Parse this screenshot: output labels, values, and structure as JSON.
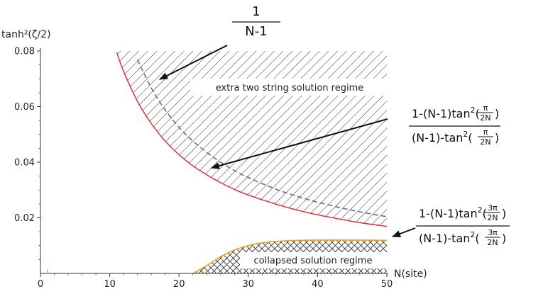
{
  "chart_data": {
    "type": "line",
    "title": "",
    "xlabel": "N(site)",
    "ylabel": "tanh²(ζ/2)",
    "xlim": [
      0,
      50
    ],
    "ylim": [
      0,
      0.08
    ],
    "x_ticks": [
      "0",
      "10",
      "20",
      "30",
      "40",
      "50"
    ],
    "y_ticks": [
      "0.02",
      "0.04",
      "0.06",
      "0.08"
    ],
    "grid": false,
    "series": [
      {
        "color": "#e0242b",
        "style": "solid",
        "formula": "(1-(N-1)·tan²(π/2N))/((N-1)-tan²(π/2N))",
        "x": [
          11,
          12,
          14,
          16,
          18,
          20,
          22,
          25,
          28,
          30,
          34,
          38,
          42,
          46,
          50
        ],
        "y": [
          0.0795,
          0.0727,
          0.0619,
          0.0539,
          0.0476,
          0.0427,
          0.0387,
          0.034,
          0.0302,
          0.0282,
          0.0249,
          0.0222,
          0.0201,
          0.0183,
          0.0169
        ]
      },
      {
        "color": "#5a6f9a",
        "style": "dashed",
        "formula": "1/(N-1)",
        "x": [
          14,
          16,
          18,
          20,
          22,
          25,
          28,
          30,
          34,
          38,
          42,
          46,
          50
        ],
        "y": [
          0.0769,
          0.0667,
          0.0588,
          0.0526,
          0.0476,
          0.0417,
          0.037,
          0.0345,
          0.0303,
          0.027,
          0.0244,
          0.0222,
          0.0204
        ]
      },
      {
        "color": "#e8a21a",
        "style": "solid",
        "formula": "(1-(N-1)·tan²(3π/2N))/((N-1)-tan²(3π/2N))",
        "x": [
          22,
          24,
          26,
          28,
          30,
          32,
          34,
          36,
          40,
          45,
          50
        ],
        "y": [
          0.0,
          0.0028,
          0.006,
          0.0084,
          0.01,
          0.011,
          0.0115,
          0.0118,
          0.012,
          0.012,
          0.0119
        ]
      }
    ],
    "regions": [
      {
        "label": "extra two string solution regime",
        "hatch": "diagonal"
      },
      {
        "label": "collapsed solution regime",
        "hatch": "crosshatch"
      }
    ],
    "annotations": [
      {
        "target": "dashed",
        "numerator": "1",
        "denominator": "N-1"
      },
      {
        "target": "red",
        "numerator": "1-(N-1)tan",
        "num_arg": "π",
        "den_arg": "2N",
        "denominator": "(N-1)-tan"
      },
      {
        "target": "orange",
        "numerator": "1-(N-1)tan",
        "num_arg": "3π",
        "den_arg": "2N",
        "denominator": "(N-1)-tan"
      }
    ]
  }
}
